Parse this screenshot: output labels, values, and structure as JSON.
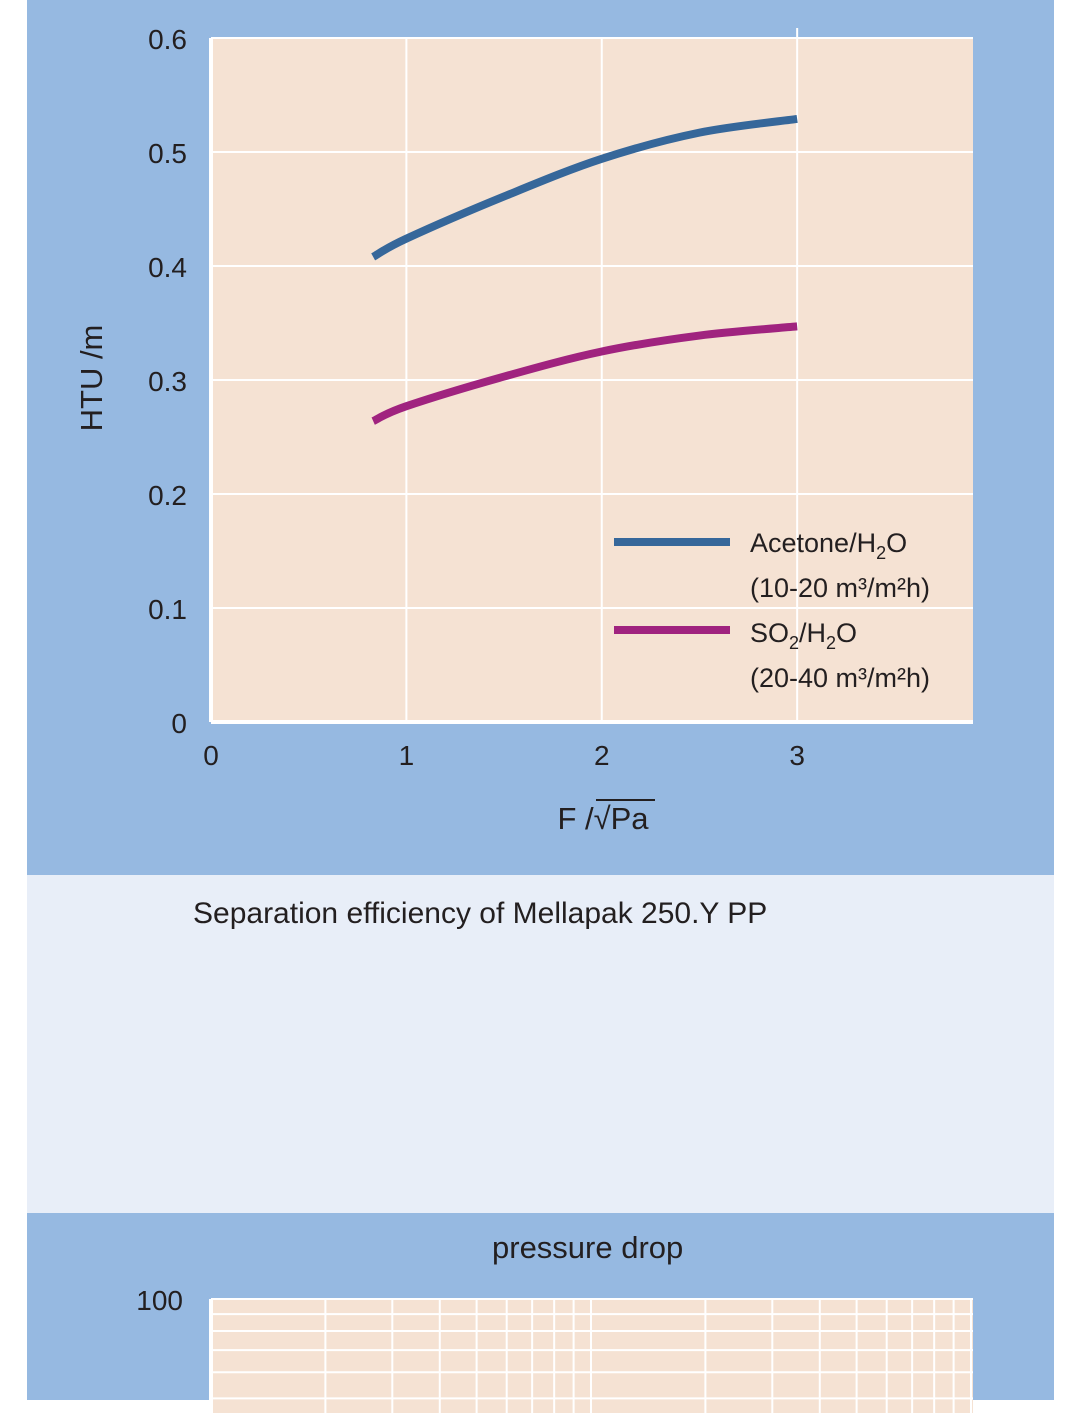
{
  "chart_data": [
    {
      "type": "line",
      "title": "",
      "xlabel": "F /√Pa",
      "ylabel": "HTU /m",
      "xlim": [
        0,
        3.9
      ],
      "ylim": [
        0,
        0.6
      ],
      "x_ticks": [
        "0",
        "1",
        "2",
        "3"
      ],
      "y_ticks": [
        "0",
        "0.1",
        "0.2",
        "0.3",
        "0.4",
        "0.5",
        "0.6"
      ],
      "grid": true,
      "legend_position": "bottom-right",
      "series": [
        {
          "name": "Acetone/H2O",
          "name_parts": {
            "base": "Acetone/H",
            "sub": "2",
            "end": "O"
          },
          "condition": "(10-20 m³/m²h)",
          "color": "#36679a",
          "x": [
            0.83,
            1.0,
            1.5,
            2.0,
            2.5,
            3.0
          ],
          "y": [
            0.408,
            0.424,
            0.461,
            0.494,
            0.517,
            0.529
          ]
        },
        {
          "name": "SO2/H2O",
          "name_parts": {
            "a": "SO",
            "sub1": "2",
            "b": "/H",
            "sub2": "2",
            "c": "O"
          },
          "condition": "(20-40 m³/m²h)",
          "color": "#a0237f",
          "x": [
            0.83,
            1.0,
            1.5,
            2.0,
            2.5,
            3.0
          ],
          "y": [
            0.264,
            0.277,
            0.303,
            0.325,
            0.339,
            0.347
          ]
        }
      ]
    },
    {
      "type": "line",
      "title": "pressure drop",
      "y_ticks": [
        "100"
      ],
      "grid": true
    }
  ],
  "caption": "Separation efficiency of Mellapak 250.Y PP",
  "colors": {
    "panel": "#96b9e1",
    "plot_bg": "#f5e2d3",
    "caption_bg": "#e8eef8",
    "grid": "#ffffff"
  }
}
